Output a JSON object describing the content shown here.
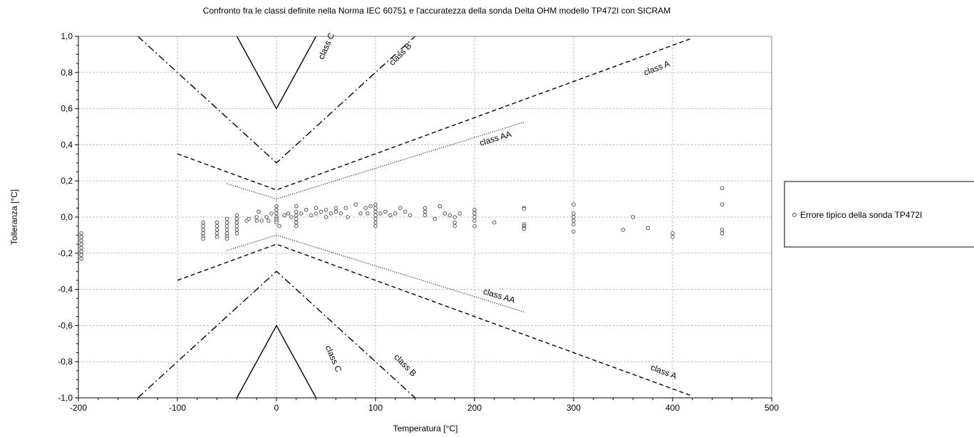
{
  "chart_data": {
    "type": "scatter",
    "title": "Confronto fra le classi definite nella Norma  IEC 60751  e l'accuratezza  della  sonda  Delta OHM  modello  TP472I  con SICRAM",
    "xlabel": "Temperatura  [°C]",
    "ylabel": "Tolleranza  [°C]",
    "xlim": [
      -200,
      500
    ],
    "ylim": [
      -1.0,
      1.0
    ],
    "x_ticks": [
      -200,
      -100,
      0,
      100,
      200,
      300,
      400,
      500
    ],
    "y_ticks": [
      -1.0,
      -0.8,
      -0.6,
      -0.4,
      -0.2,
      0.0,
      0.2,
      0.4,
      0.6,
      0.8,
      1.0
    ],
    "y_tick_labels": [
      "-1,0",
      "-0,8",
      "-0,6",
      "-0,4",
      "-0,2",
      "0,0",
      "0,2",
      "0,4",
      "0,6",
      "0,8",
      "1,0"
    ],
    "grid": true,
    "legend": {
      "position": "right",
      "entries": [
        "Errore tipico della sonda TP472I"
      ]
    },
    "tolerance_classes": [
      {
        "label": "class C",
        "style": "solid",
        "dash": "",
        "base": 0.6,
        "slope": 0.01,
        "range": [
          -40,
          40
        ],
        "label_upper": {
          "x": 53,
          "y": 0.94,
          "angle": -66
        },
        "label_lower": {
          "x": 55,
          "y": -0.79,
          "angle": 66
        }
      },
      {
        "label": "class B",
        "style": "dash-dot",
        "dash": "10 4 2 4",
        "base": 0.3,
        "slope": 0.005,
        "range": [
          -140,
          140
        ],
        "label_upper": {
          "x": 127,
          "y": 0.89,
          "angle": -45
        },
        "label_lower": {
          "x": 128,
          "y": -0.83,
          "angle": 45
        }
      },
      {
        "label": "class A",
        "style": "dashed",
        "dash": "6 4",
        "base": 0.15,
        "slope": 0.002,
        "range": [
          -100,
          420
        ],
        "label_upper": {
          "x": 385,
          "y": 0.81,
          "angle": -21
        },
        "label_lower": {
          "x": 390,
          "y": -0.87,
          "angle": 21
        }
      },
      {
        "label": "class AA",
        "style": "dotted",
        "dash": "1 2",
        "base": 0.1,
        "slope": 0.0017,
        "range": [
          -50,
          250
        ],
        "label_upper": {
          "x": 222,
          "y": 0.42,
          "angle": -17
        },
        "label_lower": {
          "x": 224,
          "y": -0.45,
          "angle": 17
        }
      }
    ],
    "series": [
      {
        "name": "Errore tipico della sonda TP472I",
        "marker": "open-circle",
        "points": [
          [
            -197,
            -0.09
          ],
          [
            -197,
            -0.11
          ],
          [
            -197,
            -0.13
          ],
          [
            -197,
            -0.15
          ],
          [
            -197,
            -0.17
          ],
          [
            -197,
            -0.19
          ],
          [
            -197,
            -0.21
          ],
          [
            -197,
            -0.23
          ],
          [
            -74,
            -0.03
          ],
          [
            -74,
            -0.05
          ],
          [
            -74,
            -0.07
          ],
          [
            -74,
            -0.09
          ],
          [
            -74,
            -0.11
          ],
          [
            -74,
            -0.12
          ],
          [
            -60,
            -0.03
          ],
          [
            -60,
            -0.05
          ],
          [
            -60,
            -0.07
          ],
          [
            -60,
            -0.09
          ],
          [
            -60,
            -0.11
          ],
          [
            -50,
            -0.01
          ],
          [
            -50,
            -0.03
          ],
          [
            -50,
            -0.05
          ],
          [
            -50,
            -0.07
          ],
          [
            -50,
            -0.09
          ],
          [
            -50,
            -0.11
          ],
          [
            -50,
            -0.12
          ],
          [
            -40,
            0.01
          ],
          [
            -40,
            -0.01
          ],
          [
            -40,
            -0.03
          ],
          [
            -40,
            -0.05
          ],
          [
            -40,
            -0.07
          ],
          [
            -40,
            -0.09
          ],
          [
            -30,
            -0.02
          ],
          [
            -28,
            -0.01
          ],
          [
            -20,
            -0.02
          ],
          [
            -20,
            0.0
          ],
          [
            -18,
            0.03
          ],
          [
            -15,
            -0.02
          ],
          [
            -10,
            0.0
          ],
          [
            -8,
            -0.02
          ],
          [
            -5,
            0.02
          ],
          [
            0,
            0.06
          ],
          [
            0,
            0.04
          ],
          [
            0,
            0.02
          ],
          [
            0,
            0.0
          ],
          [
            0,
            -0.01
          ],
          [
            0,
            -0.02
          ],
          [
            0,
            -0.03
          ],
          [
            3,
            -0.05
          ],
          [
            8,
            0.01
          ],
          [
            12,
            0.02
          ],
          [
            15,
            0.0
          ],
          [
            20,
            0.06
          ],
          [
            20,
            0.03
          ],
          [
            20,
            0.01
          ],
          [
            20,
            -0.01
          ],
          [
            20,
            -0.03
          ],
          [
            20,
            -0.05
          ],
          [
            25,
            0.02
          ],
          [
            30,
            0.04
          ],
          [
            35,
            0.01
          ],
          [
            40,
            0.05
          ],
          [
            40,
            0.02
          ],
          [
            45,
            0.03
          ],
          [
            50,
            0.04
          ],
          [
            50,
            0.0
          ],
          [
            55,
            0.02
          ],
          [
            60,
            0.05
          ],
          [
            60,
            0.03
          ],
          [
            65,
            0.02
          ],
          [
            70,
            0.05
          ],
          [
            72,
            0.0
          ],
          [
            80,
            0.07
          ],
          [
            85,
            0.02
          ],
          [
            90,
            0.05
          ],
          [
            92,
            0.02
          ],
          [
            95,
            0.06
          ],
          [
            100,
            0.07
          ],
          [
            100,
            0.05
          ],
          [
            100,
            0.03
          ],
          [
            100,
            0.01
          ],
          [
            100,
            -0.01
          ],
          [
            100,
            -0.03
          ],
          [
            100,
            -0.05
          ],
          [
            105,
            0.02
          ],
          [
            110,
            0.03
          ],
          [
            115,
            0.01
          ],
          [
            120,
            0.02
          ],
          [
            125,
            0.05
          ],
          [
            130,
            0.03
          ],
          [
            135,
            0.01
          ],
          [
            150,
            0.05
          ],
          [
            150,
            0.03
          ],
          [
            150,
            0.01
          ],
          [
            160,
            -0.01
          ],
          [
            165,
            0.06
          ],
          [
            170,
            0.02
          ],
          [
            175,
            0.01
          ],
          [
            180,
            0.0
          ],
          [
            180,
            -0.03
          ],
          [
            180,
            -0.05
          ],
          [
            185,
            0.02
          ],
          [
            200,
            0.04
          ],
          [
            200,
            0.02
          ],
          [
            200,
            0.0
          ],
          [
            200,
            -0.02
          ],
          [
            200,
            -0.05
          ],
          [
            220,
            -0.03
          ],
          [
            250,
            0.05
          ],
          [
            250,
            0.045
          ],
          [
            250,
            -0.04
          ],
          [
            250,
            -0.05
          ],
          [
            250,
            -0.06
          ],
          [
            250,
            -0.065
          ],
          [
            300,
            0.07
          ],
          [
            300,
            0.02
          ],
          [
            300,
            0.0
          ],
          [
            300,
            -0.02
          ],
          [
            300,
            -0.04
          ],
          [
            300,
            -0.08
          ],
          [
            350,
            -0.07
          ],
          [
            360,
            0.0
          ],
          [
            375,
            -0.06
          ],
          [
            400,
            -0.09
          ],
          [
            400,
            -0.11
          ],
          [
            450,
            0.16
          ],
          [
            450,
            0.07
          ],
          [
            450,
            -0.07
          ],
          [
            450,
            -0.09
          ]
        ]
      }
    ]
  }
}
